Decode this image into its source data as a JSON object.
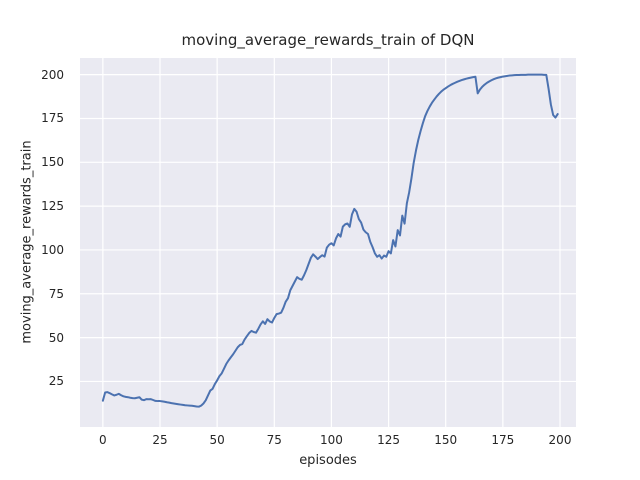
{
  "chart_data": {
    "type": "line",
    "title": "moving_average_rewards_train of DQN",
    "xlabel": "episodes",
    "ylabel": "moving_average_rewards_train",
    "x_ticks": [
      0,
      25,
      50,
      75,
      100,
      125,
      150,
      175,
      200
    ],
    "y_ticks": [
      25,
      50,
      75,
      100,
      125,
      150,
      175,
      200
    ],
    "xlim": [
      -10,
      207
    ],
    "ylim": [
      -1,
      209.5
    ],
    "grid": true,
    "legend": "none",
    "style": {
      "figure_background": "#ffffff",
      "plot_background": "#eaeaf2",
      "grid_color": "#ffffff",
      "line_color": "#4c72b0",
      "text_color": "#262626",
      "line_width": 2
    },
    "series": [
      {
        "name": "moving_average_rewards_train",
        "color": "#4c72b0",
        "x": [
          0,
          1,
          2,
          3,
          4,
          5,
          6,
          7,
          8,
          9,
          10,
          11,
          12,
          13,
          14,
          15,
          16,
          17,
          18,
          19,
          20,
          21,
          22,
          23,
          24,
          25,
          26,
          27,
          28,
          29,
          30,
          31,
          32,
          33,
          34,
          35,
          36,
          37,
          38,
          39,
          40,
          41,
          42,
          43,
          44,
          45,
          46,
          47,
          48,
          49,
          50,
          51,
          52,
          53,
          54,
          55,
          56,
          57,
          58,
          59,
          60,
          61,
          62,
          63,
          64,
          65,
          66,
          67,
          68,
          69,
          70,
          71,
          72,
          73,
          74,
          75,
          76,
          77,
          78,
          79,
          80,
          81,
          82,
          83,
          84,
          85,
          86,
          87,
          88,
          89,
          90,
          91,
          92,
          93,
          94,
          95,
          96,
          97,
          98,
          99,
          100,
          101,
          102,
          103,
          104,
          105,
          106,
          107,
          108,
          109,
          110,
          111,
          112,
          113,
          114,
          115,
          116,
          117,
          118,
          119,
          120,
          121,
          122,
          123,
          124,
          125,
          126,
          127,
          128,
          129,
          130,
          131,
          132,
          133,
          134,
          135,
          136,
          137,
          138,
          139,
          140,
          141,
          142,
          143,
          144,
          145,
          146,
          147,
          148,
          149,
          150,
          151,
          152,
          153,
          154,
          155,
          156,
          157,
          158,
          159,
          160,
          161,
          162,
          163,
          164,
          165,
          166,
          167,
          168,
          169,
          170,
          171,
          172,
          173,
          174,
          175,
          176,
          177,
          178,
          179,
          180,
          181,
          182,
          183,
          184,
          185,
          186,
          187,
          188,
          189,
          190,
          191,
          192,
          193,
          194,
          195,
          196,
          197,
          198,
          199
        ],
        "y": [
          14.0,
          18.7,
          18.9,
          18.3,
          17.6,
          17.0,
          17.4,
          17.9,
          17.1,
          16.5,
          16.2,
          16.0,
          15.7,
          15.5,
          15.4,
          15.7,
          16.0,
          14.6,
          14.3,
          14.9,
          14.8,
          14.9,
          14.4,
          13.9,
          13.8,
          13.8,
          13.6,
          13.4,
          13.1,
          12.9,
          12.6,
          12.4,
          12.2,
          12.0,
          11.8,
          11.6,
          11.4,
          11.3,
          11.2,
          11.1,
          10.9,
          10.7,
          10.6,
          11.2,
          12.4,
          14.2,
          17.0,
          19.8,
          20.8,
          23.5,
          25.6,
          28.0,
          29.6,
          32.3,
          35.0,
          37.0,
          38.8,
          40.5,
          42.5,
          44.5,
          45.8,
          46.3,
          48.9,
          50.8,
          52.6,
          53.8,
          53.2,
          52.8,
          55.0,
          57.5,
          59.3,
          57.8,
          60.5,
          59.2,
          58.6,
          61.2,
          63.4,
          63.7,
          64.2,
          67.0,
          70.5,
          72.5,
          77.0,
          79.5,
          82.0,
          84.5,
          83.5,
          83.0,
          85.5,
          88.5,
          92.0,
          95.5,
          97.5,
          96.2,
          94.8,
          96.0,
          97.0,
          96.2,
          101.3,
          103.0,
          103.8,
          102.6,
          106.6,
          109.1,
          107.6,
          113.3,
          114.6,
          115.1,
          113.2,
          120.3,
          123.4,
          121.8,
          117.6,
          115.6,
          111.6,
          110.1,
          109.1,
          104.6,
          101.6,
          98.1,
          96.1,
          97.0,
          95.1,
          96.8,
          96.1,
          99.3,
          98.0,
          105.6,
          102.0,
          111.3,
          108.3,
          119.6,
          115.0,
          126.6,
          132.8,
          140.8,
          149.8,
          156.8,
          162.8,
          167.8,
          172.3,
          176.3,
          179.3,
          181.8,
          184.0,
          185.8,
          187.5,
          189.0,
          190.3,
          191.4,
          192.3,
          193.2,
          194.0,
          194.7,
          195.3,
          195.9,
          196.4,
          196.9,
          197.3,
          197.7,
          198.0,
          198.3,
          198.6,
          198.8,
          189.3,
          191.5,
          193.1,
          194.3,
          195.3,
          196.1,
          196.8,
          197.4,
          197.9,
          198.3,
          198.6,
          198.9,
          199.1,
          199.3,
          199.5,
          199.6,
          199.7,
          199.8,
          199.8,
          199.9,
          199.9,
          199.9,
          200.0,
          200.0,
          200.0,
          200.0,
          200.0,
          200.0,
          200.0,
          199.9,
          199.9,
          192.0,
          183.0,
          177.0,
          175.5,
          177.5
        ]
      }
    ]
  }
}
